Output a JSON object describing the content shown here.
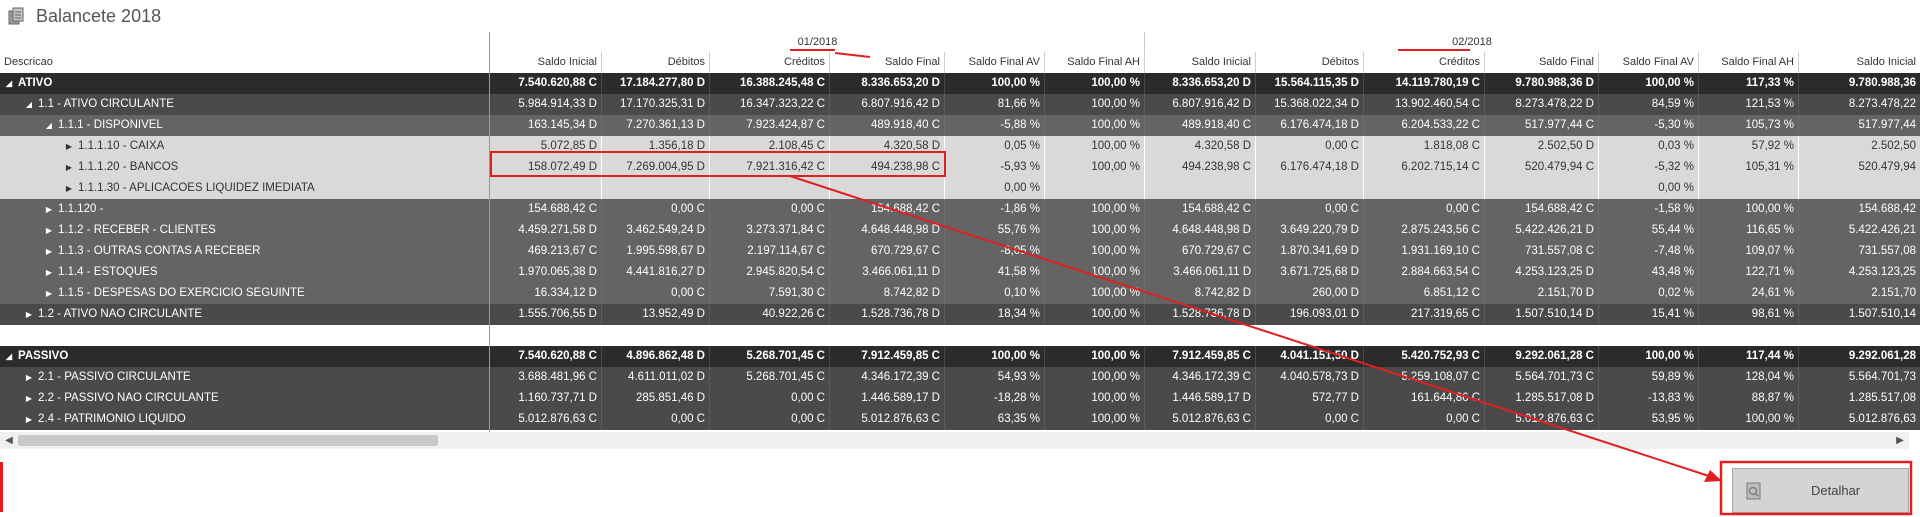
{
  "window": {
    "title": "Balancete 2018",
    "icon": "ledger-icon"
  },
  "periods": [
    "01/2018",
    "02/2018"
  ],
  "columns": {
    "descricao": "Descricao",
    "period_columns": [
      "Saldo  Inicial",
      "Débitos",
      "Créditos",
      "Saldo  Final",
      "Saldo Final AV",
      "Saldo  Final AH"
    ],
    "trailing": "Saldo  Inicial"
  },
  "rows": [
    {
      "level": 0,
      "toggle": "collapse",
      "label": "ATIVO",
      "values": [
        "7.540.620,88 C",
        "17.184.277,80 D",
        "16.388.245,48 C",
        "8.336.653,20 D",
        "100,00 %",
        "100,00 %",
        "8.336.653,20 D",
        "15.564.115,35 D",
        "14.119.780,19 C",
        "9.780.988,36 D",
        "100,00 %",
        "117,33 %",
        "9.780.988,36"
      ]
    },
    {
      "level": 1,
      "toggle": "collapse",
      "label": "1.1 - ATIVO CIRCULANTE",
      "values": [
        "5.984.914,33 D",
        "17.170.325,31 D",
        "16.347.323,22 C",
        "6.807.916,42 D",
        "81,66 %",
        "100,00 %",
        "6.807.916,42 D",
        "15.368.022,34 D",
        "13.902.460,54 C",
        "8.273.478,22 D",
        "84,59 %",
        "121,53 %",
        "8.273.478,22"
      ]
    },
    {
      "level": 2,
      "toggle": "collapse",
      "label": "1.1.1 - DISPONIVEL",
      "values": [
        "163.145,34 D",
        "7.270.361,13 D",
        "7.923.424,87 C",
        "489.918,40 C",
        "-5,88 %",
        "100,00 %",
        "489.918,40 C",
        "6.176.474,18 D",
        "6.204.533,22 C",
        "517.977,44 C",
        "-5,30 %",
        "105,73 %",
        "517.977,44"
      ]
    },
    {
      "level": 3,
      "toggle": "expand",
      "label": "1.1.1.10 - CAIXA",
      "values": [
        "5.072,85 D",
        "1.356,18 D",
        "2.108,45 C",
        "4.320,58 D",
        "0,05 %",
        "100,00 %",
        "4.320,58 D",
        "0,00 C",
        "1.818,08 C",
        "2.502,50 D",
        "0,03 %",
        "57,92 %",
        "2.502,50"
      ]
    },
    {
      "level": 3,
      "toggle": "expand",
      "label": "1.1.1.20 - BANCOS",
      "values": [
        "158.072,49 D",
        "7.269.004,95 D",
        "7.921.316,42 C",
        "494.238,98 C",
        "-5,93 %",
        "100,00 %",
        "494.238,98 C",
        "6.176.474,18 D",
        "6.202.715,14 C",
        "520.479,94 C",
        "-5,32 %",
        "105,31 %",
        "520.479,94"
      ]
    },
    {
      "level": 3,
      "toggle": "expand",
      "label": "1.1.1.30 - APLICACOES LIQUIDEZ IMEDIATA",
      "values": [
        "",
        "",
        "",
        "",
        "0,00 %",
        "",
        "",
        "",
        "",
        "",
        "0,00 %",
        "",
        ""
      ]
    },
    {
      "level": 2,
      "toggle": "expand",
      "label": "1.1.120 -",
      "values": [
        "154.688,42 C",
        "0,00 C",
        "0,00 C",
        "154.688,42 C",
        "-1,86 %",
        "100,00 %",
        "154.688,42 C",
        "0,00 C",
        "0,00 C",
        "154.688,42 C",
        "-1,58 %",
        "100,00 %",
        "154.688,42"
      ]
    },
    {
      "level": 2,
      "toggle": "expand",
      "label": "1.1.2 - RECEBER - CLIENTES",
      "values": [
        "4.459.271,58 D",
        "3.462.549,24 D",
        "3.273.371,84 C",
        "4.648.448,98 D",
        "55,76 %",
        "100,00 %",
        "4.648.448,98 D",
        "3.649.220,79 D",
        "2.875.243,56 C",
        "5.422.426,21 D",
        "55,44 %",
        "116,65 %",
        "5.422.426,21"
      ]
    },
    {
      "level": 2,
      "toggle": "expand",
      "label": "1.1.3 - OUTRAS CONTAS A RECEBER",
      "values": [
        "469.213,67 C",
        "1.995.598,67 D",
        "2.197.114,67 C",
        "670.729,67 C",
        "-8,05 %",
        "100,00 %",
        "670.729,67 C",
        "1.870.341,69 D",
        "1.931.169,10 C",
        "731.557,08 C",
        "-7,48 %",
        "109,07 %",
        "731.557,08"
      ]
    },
    {
      "level": 2,
      "toggle": "expand",
      "label": "1.1.4 - ESTOQUES",
      "values": [
        "1.970.065,38 D",
        "4.441.816,27 D",
        "2.945.820,54 C",
        "3.466.061,11 D",
        "41,58 %",
        "100,00 %",
        "3.466.061,11 D",
        "3.671.725,68 D",
        "2.884.663,54 C",
        "4.253.123,25 D",
        "43,48 %",
        "122,71 %",
        "4.253.123,25"
      ]
    },
    {
      "level": 2,
      "toggle": "expand",
      "label": "1.1.5 - DESPESAS DO EXERCICIO SEGUINTE",
      "values": [
        "16.334,12 D",
        "0,00 C",
        "7.591,30 C",
        "8.742,82 D",
        "0,10 %",
        "100,00 %",
        "8.742,82 D",
        "260,00 D",
        "6.851,12 C",
        "2.151,70 D",
        "0,02 %",
        "24,61 %",
        "2.151,70"
      ]
    },
    {
      "level": 1,
      "toggle": "expand",
      "label": "1.2 - ATIVO NAO CIRCULANTE",
      "values": [
        "1.555.706,55 D",
        "13.952,49 D",
        "40.922,26 C",
        "1.528.736,78 D",
        "18,34 %",
        "100,00 %",
        "1.528.736,78 D",
        "196.093,01 D",
        "217.319,65 C",
        "1.507.510,14 D",
        "15,41 %",
        "98,61 %",
        "1.507.510,14"
      ]
    },
    {
      "level": -1,
      "toggle": "",
      "label": "",
      "values": []
    },
    {
      "level": 0,
      "toggle": "collapse",
      "label": "PASSIVO",
      "values": [
        "7.540.620,88 C",
        "4.896.862,48 D",
        "5.268.701,45 C",
        "7.912.459,85 C",
        "100,00 %",
        "100,00 %",
        "7.912.459,85 C",
        "4.041.151,50 D",
        "5.420.752,93 C",
        "9.292.061,28 C",
        "100,00 %",
        "117,44 %",
        "9.292.061,28"
      ]
    },
    {
      "level": 1,
      "toggle": "expand",
      "label": "2.1 - PASSIVO CIRCULANTE",
      "values": [
        "3.688.481,96 C",
        "4.611.011,02 D",
        "5.268.701,45 C",
        "4.346.172,39 C",
        "54,93 %",
        "100,00 %",
        "4.346.172,39 C",
        "4.040.578,73 D",
        "5.259.108,07 C",
        "5.564.701,73 C",
        "59,89 %",
        "128,04 %",
        "5.564.701,73"
      ]
    },
    {
      "level": 1,
      "toggle": "expand",
      "label": "2.2 - PASSIVO NAO CIRCULANTE",
      "values": [
        "1.160.737,71 D",
        "285.851,46 D",
        "0,00 C",
        "1.446.589,17 D",
        "-18,28 %",
        "100,00 %",
        "1.446.589,17 D",
        "572,77 D",
        "161.644,86 C",
        "1.285.517,08 D",
        "-13,83 %",
        "88,87 %",
        "1.285.517,08"
      ]
    },
    {
      "level": 1,
      "toggle": "expand",
      "label": "2.4 - PATRIMONIO LIQUIDO",
      "values": [
        "5.012.876,63 C",
        "0,00 C",
        "0,00 C",
        "5.012.876,63 C",
        "63,35 %",
        "100,00 %",
        "5.012.876,63 C",
        "0,00 C",
        "0,00 C",
        "5.012.876,63 C",
        "53,95 %",
        "100,00 %",
        "5.012.876,63"
      ]
    }
  ],
  "scrollbar": {
    "left_arrow": "◀",
    "right_arrow": "▶"
  },
  "button": {
    "label": "Detalhar",
    "icon": "document-icon"
  },
  "annotations": {
    "color": "#e02020"
  }
}
